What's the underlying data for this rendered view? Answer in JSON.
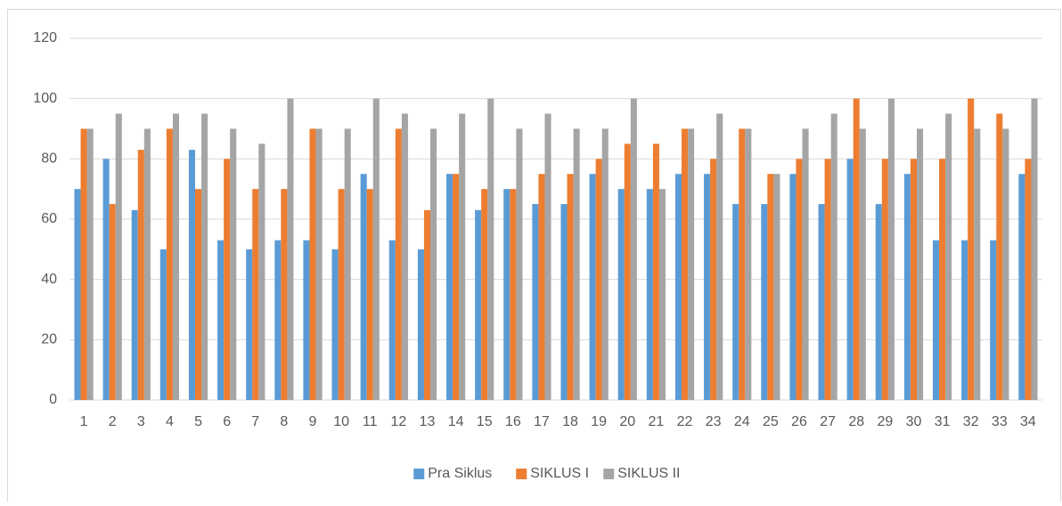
{
  "chart_data": {
    "type": "bar",
    "categories": [
      "1",
      "2",
      "3",
      "4",
      "5",
      "6",
      "7",
      "8",
      "9",
      "10",
      "11",
      "12",
      "13",
      "14",
      "15",
      "16",
      "17",
      "18",
      "19",
      "20",
      "21",
      "22",
      "23",
      "24",
      "25",
      "26",
      "27",
      "28",
      "29",
      "30",
      "31",
      "32",
      "33",
      "34"
    ],
    "series": [
      {
        "name": "Pra Siklus",
        "color": "#5b9bd5",
        "values": [
          70,
          80,
          63,
          50,
          83,
          53,
          50,
          53,
          53,
          50,
          75,
          53,
          50,
          75,
          63,
          70,
          65,
          65,
          75,
          70,
          70,
          75,
          75,
          65,
          65,
          75,
          65,
          80,
          65,
          75,
          53,
          53,
          53,
          75
        ]
      },
      {
        "name": "SIKLUS I",
        "color": "#ed7d31",
        "values": [
          90,
          65,
          83,
          90,
          70,
          80,
          70,
          70,
          90,
          70,
          70,
          90,
          63,
          75,
          70,
          70,
          75,
          75,
          80,
          85,
          85,
          90,
          80,
          90,
          75,
          80,
          80,
          100,
          80,
          80,
          80,
          100,
          95,
          80
        ]
      },
      {
        "name": "SIKLUS II",
        "color": "#a5a5a5",
        "values": [
          90,
          95,
          90,
          95,
          95,
          90,
          85,
          100,
          90,
          90,
          100,
          95,
          90,
          95,
          100,
          90,
          95,
          90,
          90,
          100,
          70,
          90,
          95,
          90,
          75,
          90,
          95,
          90,
          100,
          90,
          95,
          90,
          90,
          100
        ]
      }
    ],
    "ylim": [
      0,
      120
    ],
    "yticks": [
      0,
      20,
      40,
      60,
      80,
      100,
      120
    ],
    "grid": true,
    "legend": "bottom"
  }
}
